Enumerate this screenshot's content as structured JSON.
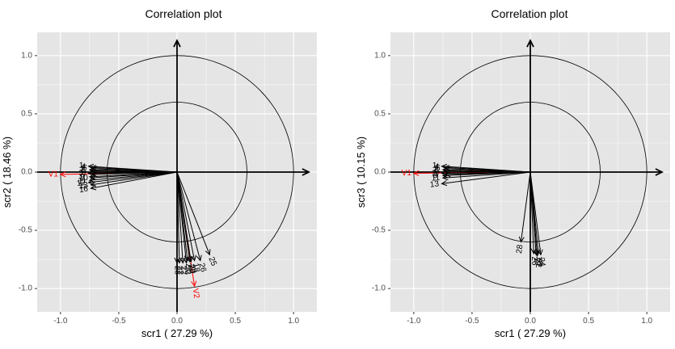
{
  "chart_data": [
    {
      "type": "scatter",
      "title": "Correlation plot",
      "xlabel": "scr1 ( 27.29 %)",
      "ylabel": "scr2 ( 18.46 %)",
      "xlim": [
        -1.2,
        1.2
      ],
      "ylim": [
        -1.2,
        1.2
      ],
      "xticks": [
        -1.0,
        -0.5,
        0.0,
        0.5,
        1.0
      ],
      "yticks": [
        -1.0,
        -0.5,
        0.0,
        0.5,
        1.0
      ],
      "xtick_labels": [
        "-1.0",
        "-0.5",
        "0.0",
        "0.5",
        "1.0"
      ],
      "ytick_labels": [
        "-1.0",
        "-0.5",
        "0.0",
        "0.5",
        "1.0"
      ],
      "grid": true,
      "circles": [
        1.0,
        0.6
      ],
      "arrows": [
        {
          "label": "V1",
          "x": -1.0,
          "y": -0.02,
          "highlight": true
        },
        {
          "label": "V2",
          "x": 0.15,
          "y": -0.98,
          "highlight": true
        },
        {
          "label": "1",
          "x": -0.76,
          "y": 0.05
        },
        {
          "label": "4",
          "x": -0.74,
          "y": 0.04
        },
        {
          "label": "6",
          "x": -0.73,
          "y": 0.03
        },
        {
          "label": "2",
          "x": -0.75,
          "y": 0.02
        },
        {
          "label": "5",
          "x": -0.74,
          "y": 0.01
        },
        {
          "label": "3",
          "x": -0.76,
          "y": -0.01
        },
        {
          "label": "7",
          "x": -0.73,
          "y": -0.02
        },
        {
          "label": "9",
          "x": -0.75,
          "y": -0.04
        },
        {
          "label": "10",
          "x": -0.74,
          "y": -0.05
        },
        {
          "label": "11",
          "x": -0.75,
          "y": -0.07
        },
        {
          "label": "12",
          "x": -0.76,
          "y": -0.09
        },
        {
          "label": "13",
          "x": -0.74,
          "y": -0.11
        },
        {
          "label": "16",
          "x": -0.74,
          "y": -0.14
        },
        {
          "label": "18",
          "x": 0.15,
          "y": -0.76
        },
        {
          "label": "20",
          "x": 0.12,
          "y": -0.77
        },
        {
          "label": "21",
          "x": 0.09,
          "y": -0.76
        },
        {
          "label": "22",
          "x": 0.05,
          "y": -0.78
        },
        {
          "label": "23",
          "x": 0.08,
          "y": -0.78
        },
        {
          "label": "24",
          "x": 0.11,
          "y": -0.77
        },
        {
          "label": "25",
          "x": 0.28,
          "y": -0.71
        },
        {
          "label": "26",
          "x": 0.2,
          "y": -0.76
        },
        {
          "label": "27",
          "x": 0.02,
          "y": -0.78
        },
        {
          "label": "28",
          "x": 0.0,
          "y": -0.78
        }
      ]
    },
    {
      "type": "scatter",
      "title": "Correlation plot",
      "xlabel": "scr1 ( 27.29 %)",
      "ylabel": "scr3 ( 10.15 %)",
      "xlim": [
        -1.2,
        1.2
      ],
      "ylim": [
        -1.2,
        1.2
      ],
      "xticks": [
        -1.0,
        -0.5,
        0.0,
        0.5,
        1.0
      ],
      "yticks": [
        -1.0,
        -0.5,
        0.0,
        0.5,
        1.0
      ],
      "xtick_labels": [
        "-1.0",
        "-0.5",
        "0.0",
        "0.5",
        "1.0"
      ],
      "ytick_labels": [
        "-1.0",
        "-0.5",
        "0.0",
        "0.5",
        "1.0"
      ],
      "grid": true,
      "circles": [
        1.0,
        0.6
      ],
      "arrows": [
        {
          "label": "V1",
          "x": -1.0,
          "y": -0.01,
          "highlight": true
        },
        {
          "label": "1",
          "x": -0.76,
          "y": 0.05
        },
        {
          "label": "4",
          "x": -0.74,
          "y": 0.04
        },
        {
          "label": "6",
          "x": -0.73,
          "y": 0.03
        },
        {
          "label": "2",
          "x": -0.75,
          "y": 0.02
        },
        {
          "label": "5",
          "x": -0.74,
          "y": 0.01
        },
        {
          "label": "3",
          "x": -0.76,
          "y": -0.01
        },
        {
          "label": "7",
          "x": -0.73,
          "y": -0.02
        },
        {
          "label": "9",
          "x": -0.75,
          "y": -0.03
        },
        {
          "label": "11",
          "x": -0.75,
          "y": -0.05
        },
        {
          "label": "13",
          "x": -0.76,
          "y": -0.1
        },
        {
          "label": "28",
          "x": -0.08,
          "y": -0.6
        },
        {
          "label": "26",
          "x": 0.03,
          "y": -0.7
        },
        {
          "label": "27",
          "x": 0.05,
          "y": -0.71
        },
        {
          "label": "22",
          "x": 0.06,
          "y": -0.72
        },
        {
          "label": "24",
          "x": 0.09,
          "y": -0.71
        },
        {
          "label": "18",
          "x": 0.07,
          "y": -0.7
        }
      ]
    }
  ],
  "colors": {
    "panel_bg": "#E5E5E5",
    "grid": "#FFFFFF",
    "arrow": "#000000",
    "highlight": "#FF0000",
    "tick_text": "#4D4D4D",
    "text": "#000000"
  }
}
